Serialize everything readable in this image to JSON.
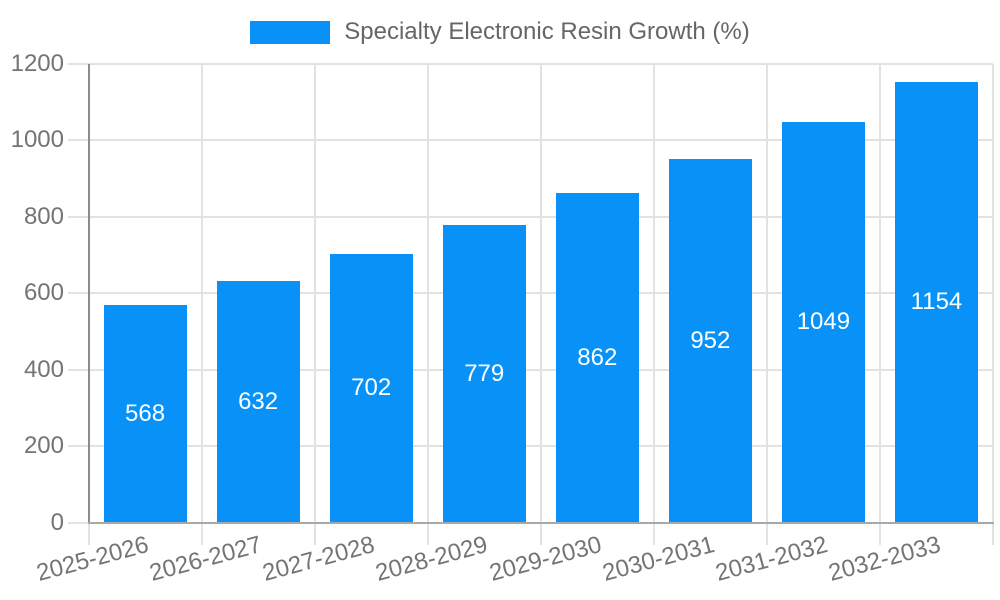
{
  "chart_data": {
    "type": "bar",
    "title": "Specialty Electronic Resin Growth (%)",
    "series_name": "Specialty Electronic Resin Growth (%)",
    "categories": [
      "2025-2026",
      "2026-2027",
      "2027-2028",
      "2028-2029",
      "2029-2030",
      "2030-2031",
      "2031-2032",
      "2032-2033"
    ],
    "values": [
      568,
      632,
      702,
      779,
      862,
      952,
      1049,
      1154
    ],
    "value_labels": [
      "568",
      "632",
      "702",
      "779",
      "862",
      "952",
      "1049",
      "1154"
    ],
    "ylim": [
      0,
      1200
    ],
    "ytick_step": 200,
    "ytick_labels": [
      "0",
      "200",
      "400",
      "600",
      "800",
      "1000",
      "1200"
    ],
    "xlabel": "",
    "ylabel": "",
    "grid": true,
    "legend_position": "top-center",
    "value_label_position": "inside-center",
    "x_label_rotation_deg": -15,
    "colors": {
      "bar": "#0892f8",
      "gridline": "#e2e2e2",
      "y_axis_line": "#8c8c8c",
      "x_axis_line": "#a8a8a8",
      "axis_label": "#747474",
      "legend_text": "#666666",
      "value_label": "#ffffff",
      "background": "#ffffff"
    }
  }
}
